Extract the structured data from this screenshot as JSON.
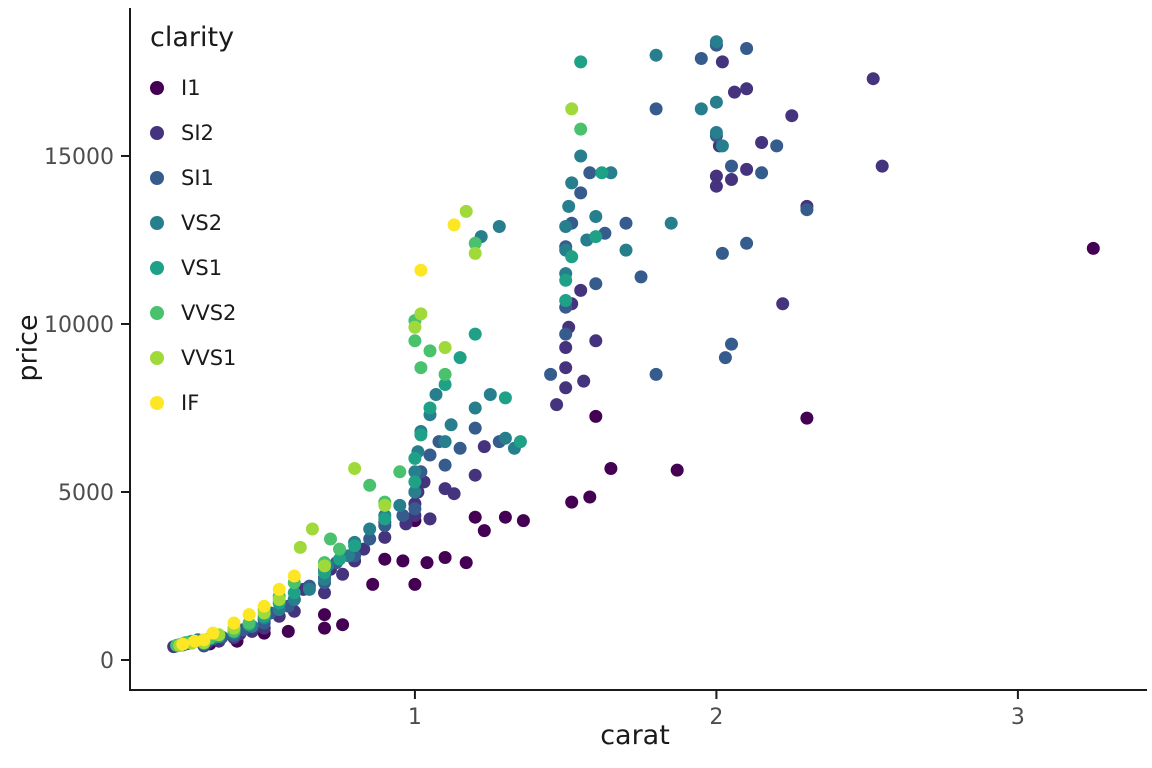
{
  "figure": {
    "background": "#FFFFFF"
  },
  "chart_data": {
    "type": "scatter",
    "title": "",
    "xlabel": "carat",
    "ylabel": "price",
    "grid": false,
    "legend": {
      "title": "clarity",
      "position": "inside-top-left"
    },
    "x_ticks": [
      1,
      2,
      3
    ],
    "y_ticks": [
      0,
      5000,
      10000,
      15000
    ],
    "xlim": [
      0.055,
      3.405
    ],
    "ylim": [
      -893,
      19404
    ],
    "point_radius": 6.5,
    "axis_color": "#1a1a1a",
    "tick_label_color": "#4d4d4d",
    "series": [
      {
        "name": "I1",
        "color": "#440154",
        "points": [
          [
            0.25,
            500
          ],
          [
            0.32,
            480
          ],
          [
            0.41,
            560
          ],
          [
            0.5,
            800
          ],
          [
            0.58,
            850
          ],
          [
            0.7,
            950
          ],
          [
            0.7,
            1350
          ],
          [
            0.76,
            1050
          ],
          [
            0.86,
            2250
          ],
          [
            0.9,
            3000
          ],
          [
            0.96,
            2950
          ],
          [
            1.0,
            2250
          ],
          [
            1.0,
            4150
          ],
          [
            1.04,
            2900
          ],
          [
            1.1,
            3050
          ],
          [
            1.17,
            2900
          ],
          [
            1.2,
            4250
          ],
          [
            1.23,
            3850
          ],
          [
            1.3,
            4250
          ],
          [
            1.36,
            4150
          ],
          [
            1.52,
            4700
          ],
          [
            1.58,
            4850
          ],
          [
            1.6,
            7250
          ],
          [
            1.65,
            5700
          ],
          [
            1.87,
            5650
          ],
          [
            2.3,
            7200
          ],
          [
            3.25,
            12250
          ]
        ]
      },
      {
        "name": "SI2",
        "color": "#46337e",
        "points": [
          [
            0.2,
            400
          ],
          [
            0.23,
            450
          ],
          [
            0.26,
            520
          ],
          [
            0.3,
            420
          ],
          [
            0.31,
            500
          ],
          [
            0.35,
            560
          ],
          [
            0.4,
            660
          ],
          [
            0.42,
            780
          ],
          [
            0.46,
            850
          ],
          [
            0.5,
            950
          ],
          [
            0.5,
            1200
          ],
          [
            0.55,
            1300
          ],
          [
            0.6,
            1450
          ],
          [
            0.63,
            2100
          ],
          [
            0.7,
            2000
          ],
          [
            0.7,
            2450
          ],
          [
            0.72,
            2700
          ],
          [
            0.76,
            2550
          ],
          [
            0.8,
            2950
          ],
          [
            0.83,
            3300
          ],
          [
            0.9,
            3650
          ],
          [
            0.9,
            4100
          ],
          [
            0.97,
            4050
          ],
          [
            1.0,
            4300
          ],
          [
            1.0,
            4650
          ],
          [
            1.01,
            5000
          ],
          [
            1.03,
            5300
          ],
          [
            1.05,
            4200
          ],
          [
            1.1,
            5100
          ],
          [
            1.13,
            4950
          ],
          [
            1.2,
            5500
          ],
          [
            1.23,
            6350
          ],
          [
            1.47,
            7600
          ],
          [
            1.5,
            8100
          ],
          [
            1.5,
            8700
          ],
          [
            1.5,
            9300
          ],
          [
            1.51,
            9900
          ],
          [
            1.52,
            10600
          ],
          [
            1.55,
            11000
          ],
          [
            1.56,
            8300
          ],
          [
            1.6,
            9500
          ],
          [
            2.0,
            14100
          ],
          [
            2.0,
            14400
          ],
          [
            2.01,
            15300
          ],
          [
            2.02,
            17800
          ],
          [
            2.05,
            14300
          ],
          [
            2.06,
            16900
          ],
          [
            2.1,
            17000
          ],
          [
            2.1,
            14600
          ],
          [
            2.15,
            15400
          ],
          [
            2.22,
            10600
          ],
          [
            2.25,
            16200
          ],
          [
            2.3,
            13500
          ],
          [
            2.52,
            17300
          ],
          [
            2.55,
            14700
          ]
        ]
      },
      {
        "name": "SI1",
        "color": "#365c8d",
        "points": [
          [
            0.21,
            420
          ],
          [
            0.24,
            480
          ],
          [
            0.27,
            560
          ],
          [
            0.3,
            450
          ],
          [
            0.32,
            600
          ],
          [
            0.36,
            680
          ],
          [
            0.4,
            720
          ],
          [
            0.43,
            900
          ],
          [
            0.5,
            1100
          ],
          [
            0.52,
            1400
          ],
          [
            0.58,
            1600
          ],
          [
            0.6,
            1800
          ],
          [
            0.65,
            2200
          ],
          [
            0.7,
            2300
          ],
          [
            0.7,
            2700
          ],
          [
            0.74,
            2900
          ],
          [
            0.8,
            3100
          ],
          [
            0.85,
            3600
          ],
          [
            0.9,
            4000
          ],
          [
            0.96,
            4300
          ],
          [
            1.0,
            4500
          ],
          [
            1.0,
            5000
          ],
          [
            1.02,
            5600
          ],
          [
            1.05,
            6100
          ],
          [
            1.08,
            6500
          ],
          [
            1.1,
            5800
          ],
          [
            1.15,
            6300
          ],
          [
            1.2,
            6900
          ],
          [
            1.28,
            6500
          ],
          [
            1.45,
            8500
          ],
          [
            1.5,
            9700
          ],
          [
            1.5,
            10500
          ],
          [
            1.5,
            12300
          ],
          [
            1.52,
            13000
          ],
          [
            1.55,
            13900
          ],
          [
            1.58,
            14500
          ],
          [
            1.6,
            11200
          ],
          [
            1.63,
            12700
          ],
          [
            1.7,
            13000
          ],
          [
            1.75,
            11400
          ],
          [
            1.8,
            8500
          ],
          [
            1.8,
            16400
          ],
          [
            1.95,
            17900
          ],
          [
            2.0,
            15600
          ],
          [
            2.0,
            18300
          ],
          [
            2.02,
            12100
          ],
          [
            2.03,
            9000
          ],
          [
            2.05,
            9400
          ],
          [
            2.05,
            14700
          ],
          [
            2.1,
            18200
          ],
          [
            2.1,
            12400
          ],
          [
            2.15,
            14500
          ],
          [
            2.2,
            15300
          ],
          [
            2.3,
            13400
          ]
        ]
      },
      {
        "name": "VS2",
        "color": "#277f8e",
        "points": [
          [
            0.22,
            450
          ],
          [
            0.25,
            530
          ],
          [
            0.28,
            600
          ],
          [
            0.3,
            500
          ],
          [
            0.33,
            650
          ],
          [
            0.4,
            800
          ],
          [
            0.46,
            1000
          ],
          [
            0.5,
            1250
          ],
          [
            0.55,
            1500
          ],
          [
            0.6,
            1800
          ],
          [
            0.65,
            2100
          ],
          [
            0.7,
            2400
          ],
          [
            0.71,
            2800
          ],
          [
            0.78,
            3100
          ],
          [
            0.8,
            3500
          ],
          [
            0.85,
            3900
          ],
          [
            0.9,
            4300
          ],
          [
            0.95,
            4600
          ],
          [
            1.0,
            5000
          ],
          [
            1.0,
            5600
          ],
          [
            1.01,
            6200
          ],
          [
            1.02,
            6800
          ],
          [
            1.05,
            7300
          ],
          [
            1.07,
            7900
          ],
          [
            1.1,
            6500
          ],
          [
            1.12,
            7000
          ],
          [
            1.2,
            7500
          ],
          [
            1.25,
            7900
          ],
          [
            1.3,
            6600
          ],
          [
            1.33,
            6300
          ],
          [
            1.22,
            12600
          ],
          [
            1.28,
            12900
          ],
          [
            1.5,
            11500
          ],
          [
            1.5,
            12200
          ],
          [
            1.5,
            12900
          ],
          [
            1.51,
            13500
          ],
          [
            1.52,
            14200
          ],
          [
            1.55,
            15000
          ],
          [
            1.57,
            12500
          ],
          [
            1.6,
            13200
          ],
          [
            1.65,
            14500
          ],
          [
            1.7,
            12200
          ],
          [
            1.8,
            18000
          ],
          [
            1.85,
            13000
          ],
          [
            1.95,
            16400
          ],
          [
            2.0,
            18400
          ],
          [
            2.0,
            15700
          ],
          [
            2.0,
            16600
          ],
          [
            2.02,
            15300
          ]
        ]
      },
      {
        "name": "VS1",
        "color": "#1fa187",
        "points": [
          [
            0.23,
            480
          ],
          [
            0.26,
            560
          ],
          [
            0.3,
            550
          ],
          [
            0.35,
            700
          ],
          [
            0.4,
            900
          ],
          [
            0.45,
            1050
          ],
          [
            0.5,
            1300
          ],
          [
            0.55,
            1700
          ],
          [
            0.6,
            2000
          ],
          [
            0.7,
            2600
          ],
          [
            0.75,
            3000
          ],
          [
            0.8,
            3400
          ],
          [
            0.9,
            4200
          ],
          [
            1.0,
            5300
          ],
          [
            1.0,
            6000
          ],
          [
            1.02,
            6700
          ],
          [
            1.05,
            7500
          ],
          [
            1.1,
            8200
          ],
          [
            1.15,
            9000
          ],
          [
            1.2,
            9700
          ],
          [
            1.3,
            7800
          ],
          [
            1.35,
            6500
          ],
          [
            1.5,
            10700
          ],
          [
            1.5,
            11300
          ],
          [
            1.52,
            12000
          ],
          [
            1.55,
            17800
          ],
          [
            1.6,
            12600
          ],
          [
            1.62,
            14500
          ]
        ]
      },
      {
        "name": "VVS2",
        "color": "#4ac16d",
        "points": [
          [
            0.21,
            440
          ],
          [
            0.24,
            520
          ],
          [
            0.3,
            500
          ],
          [
            0.32,
            650
          ],
          [
            0.4,
            850
          ],
          [
            0.45,
            1100
          ],
          [
            0.5,
            1500
          ],
          [
            0.55,
            1900
          ],
          [
            0.6,
            2300
          ],
          [
            0.7,
            2900
          ],
          [
            0.72,
            3600
          ],
          [
            0.75,
            3300
          ],
          [
            0.85,
            5200
          ],
          [
            0.9,
            4700
          ],
          [
            0.95,
            5600
          ],
          [
            1.0,
            9500
          ],
          [
            1.0,
            10100
          ],
          [
            1.02,
            8700
          ],
          [
            1.05,
            9200
          ],
          [
            1.1,
            8500
          ],
          [
            1.2,
            12400
          ],
          [
            1.55,
            15800
          ]
        ]
      },
      {
        "name": "VVS1",
        "color": "#9fda3a",
        "points": [
          [
            0.22,
            430
          ],
          [
            0.26,
            500
          ],
          [
            0.3,
            520
          ],
          [
            0.35,
            750
          ],
          [
            0.4,
            950
          ],
          [
            0.5,
            1400
          ],
          [
            0.55,
            1800
          ],
          [
            0.62,
            3350
          ],
          [
            0.66,
            3900
          ],
          [
            0.7,
            2800
          ],
          [
            0.8,
            5700
          ],
          [
            0.9,
            4600
          ],
          [
            1.0,
            9900
          ],
          [
            1.02,
            10300
          ],
          [
            1.1,
            9300
          ],
          [
            1.17,
            13350
          ],
          [
            1.2,
            12100
          ],
          [
            1.52,
            16400
          ]
        ]
      },
      {
        "name": "IF",
        "color": "#fde725",
        "points": [
          [
            0.23,
            470
          ],
          [
            0.27,
            560
          ],
          [
            0.3,
            600
          ],
          [
            0.33,
            800
          ],
          [
            0.4,
            1100
          ],
          [
            0.45,
            1350
          ],
          [
            0.5,
            1600
          ],
          [
            0.55,
            2100
          ],
          [
            0.6,
            2500
          ],
          [
            1.02,
            11600
          ],
          [
            1.13,
            12950
          ]
        ]
      }
    ]
  }
}
